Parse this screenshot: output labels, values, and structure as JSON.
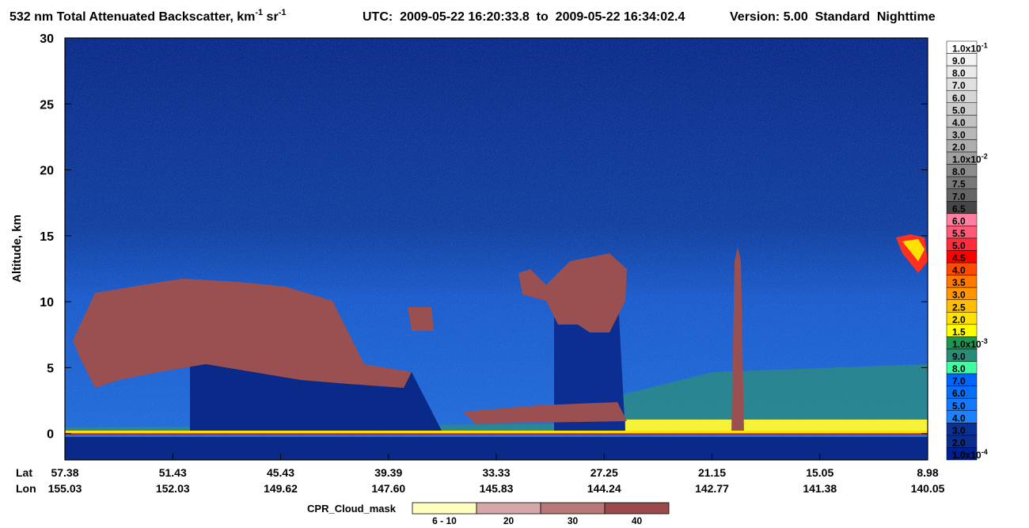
{
  "chart_data": {
    "type": "curtain",
    "title": {
      "text": "532 nm Total Attenuated Backscatter, km",
      "exp1": "-1",
      "text2": " sr",
      "exp2": "-1"
    },
    "utc": "UTC:  2009-05-22 16:20:33.8  to  2009-05-22 16:34:02.4",
    "version": "Version: 5.00  Standard  Nighttime",
    "y_label": "Altitude, km",
    "ylim": [
      -2,
      30
    ],
    "yticks": [
      0,
      5,
      10,
      15,
      20,
      25,
      30
    ],
    "x_label_lat": "Lat",
    "x_label_lon": "Lon",
    "lat": [
      57.38,
      51.43,
      45.43,
      39.39,
      33.33,
      27.25,
      21.15,
      15.05,
      8.98
    ],
    "lon": [
      155.03,
      152.03,
      149.62,
      147.6,
      145.83,
      144.24,
      142.77,
      141.38,
      140.05
    ],
    "colorbar": [
      {
        "label": "1.0x10",
        "exp": "-1",
        "color": "#ffffff"
      },
      {
        "label": "9.0",
        "color": "#f4f4f4"
      },
      {
        "label": "8.0",
        "color": "#eaeaea"
      },
      {
        "label": "7.0",
        "color": "#e0e0e0"
      },
      {
        "label": "6.0",
        "color": "#d6d6d6"
      },
      {
        "label": "5.0",
        "color": "#cccccc"
      },
      {
        "label": "4.0",
        "color": "#c2c2c2"
      },
      {
        "label": "3.0",
        "color": "#b8b8b8"
      },
      {
        "label": "2.0",
        "color": "#aeaeae"
      },
      {
        "label": "1.0x10",
        "exp": "-2",
        "color": "#a0a0a0"
      },
      {
        "label": "8.0",
        "color": "#8c8c8c"
      },
      {
        "label": "7.5",
        "color": "#787878"
      },
      {
        "label": "7.0",
        "color": "#646464"
      },
      {
        "label": "6.5",
        "color": "#464646"
      },
      {
        "label": "6.0",
        "color": "#ff7fa0"
      },
      {
        "label": "5.5",
        "color": "#ff5a78"
      },
      {
        "label": "5.0",
        "color": "#ff2d3c"
      },
      {
        "label": "4.5",
        "color": "#ff0000"
      },
      {
        "label": "4.0",
        "color": "#ff4b00"
      },
      {
        "label": "3.5",
        "color": "#ff7800"
      },
      {
        "label": "3.0",
        "color": "#ff9600"
      },
      {
        "label": "2.5",
        "color": "#ffbe00"
      },
      {
        "label": "2.0",
        "color": "#ffe100"
      },
      {
        "label": "1.5",
        "color": "#ffff00"
      },
      {
        "label": "1.0x10",
        "exp": "-3",
        "color": "#1e9650"
      },
      {
        "label": "9.0",
        "color": "#288c78"
      },
      {
        "label": "8.0",
        "color": "#3cffa0"
      },
      {
        "label": "7.0",
        "color": "#0064ff"
      },
      {
        "label": "6.0",
        "color": "#0a6ef5"
      },
      {
        "label": "5.0",
        "color": "#1478ff"
      },
      {
        "label": "4.0",
        "color": "#1e82ff"
      },
      {
        "label": "3.0",
        "color": "#0a3296"
      },
      {
        "label": "2.0",
        "color": "#0a2d8c"
      },
      {
        "label": "1.0x10",
        "exp": "-4",
        "color": "#00208f"
      }
    ],
    "cloud_mask_title": "CPR_Cloud_mask",
    "cloud_mask": [
      {
        "label": "6 - 10",
        "color": "#ffffc0"
      },
      {
        "label": "20",
        "color": "#d4a8a8"
      },
      {
        "label": "30",
        "color": "#b87878"
      },
      {
        "label": "40",
        "color": "#9a4a4a"
      }
    ]
  }
}
